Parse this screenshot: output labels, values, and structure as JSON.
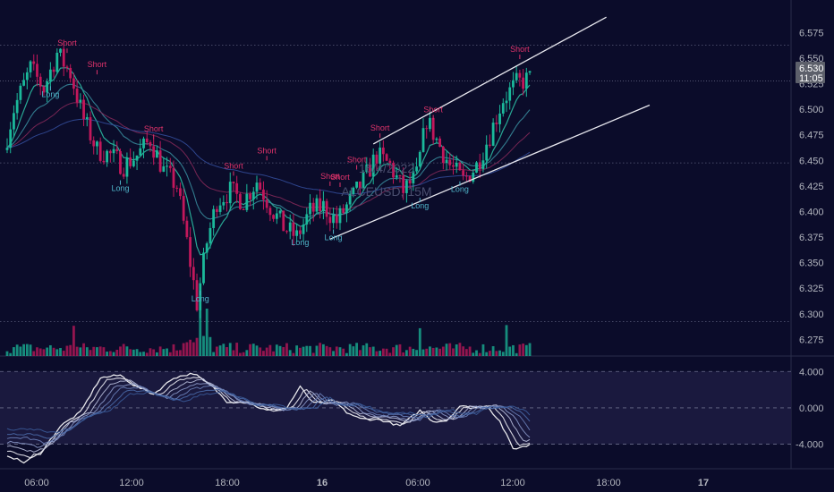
{
  "colors": {
    "background": "#0b0c2a",
    "up": "#1bb89a",
    "down": "#c2185b",
    "short_label": "#e0336b",
    "long_label": "#4fb3c8",
    "price_tag_bg": "#5d606b",
    "axis_text": "#b2b5be",
    "grid_dotted": "#3a3d5c",
    "channel": "#e8e8ef",
    "osc_band": "#1c1b40"
  },
  "watermark": {
    "date": "16/4/2022",
    "symbol": "ALCEUSD, 15M"
  },
  "current_price": {
    "value": "6.530",
    "countdown": "11:05"
  },
  "chart_data": {
    "type": "candlestick",
    "price_axis": {
      "ticks": [
        "6.575",
        "6.550",
        "6.525",
        "6.500",
        "6.475",
        "6.450",
        "6.425",
        "6.400",
        "6.375",
        "6.350",
        "6.325",
        "6.300",
        "6.275"
      ],
      "ylim": [
        6.2675,
        6.5875
      ]
    },
    "oscillator_axis": {
      "ticks": [
        "4.000",
        "0.000",
        "-4.000"
      ],
      "ylim": [
        -6.5,
        5.5
      ]
    },
    "time_axis": {
      "ticks": [
        "06:00",
        "12:00",
        "18:00",
        "16",
        "06:00",
        "12:00",
        "18:00",
        "17"
      ]
    },
    "signals": {
      "short_label": "Short",
      "long_label": "Long",
      "shorts": [
        {
          "t": 18,
          "price": 6.562
        },
        {
          "t": 27,
          "price": 6.541
        },
        {
          "t": 44,
          "price": 6.478
        },
        {
          "t": 68,
          "price": 6.442
        },
        {
          "t": 78,
          "price": 6.457
        },
        {
          "t": 97,
          "price": 6.432
        },
        {
          "t": 100,
          "price": 6.431
        },
        {
          "t": 105,
          "price": 6.448
        },
        {
          "t": 112,
          "price": 6.479
        },
        {
          "t": 128,
          "price": 6.497
        },
        {
          "t": 154,
          "price": 6.556
        }
      ],
      "longs": [
        {
          "t": 13,
          "price": 6.512
        },
        {
          "t": 34,
          "price": 6.42
        },
        {
          "t": 58,
          "price": 6.312
        },
        {
          "t": 88,
          "price": 6.367
        },
        {
          "t": 98,
          "price": 6.372
        },
        {
          "t": 124,
          "price": 6.403
        },
        {
          "t": 136,
          "price": 6.419
        }
      ]
    },
    "channel_lines": [
      {
        "t1": 97,
        "p1": 6.373,
        "t2": 193,
        "p2": 6.504
      },
      {
        "t1": 110,
        "p1": 6.466,
        "t2": 180,
        "p2": 6.59
      }
    ],
    "oscillator_zero_line": 0
  }
}
